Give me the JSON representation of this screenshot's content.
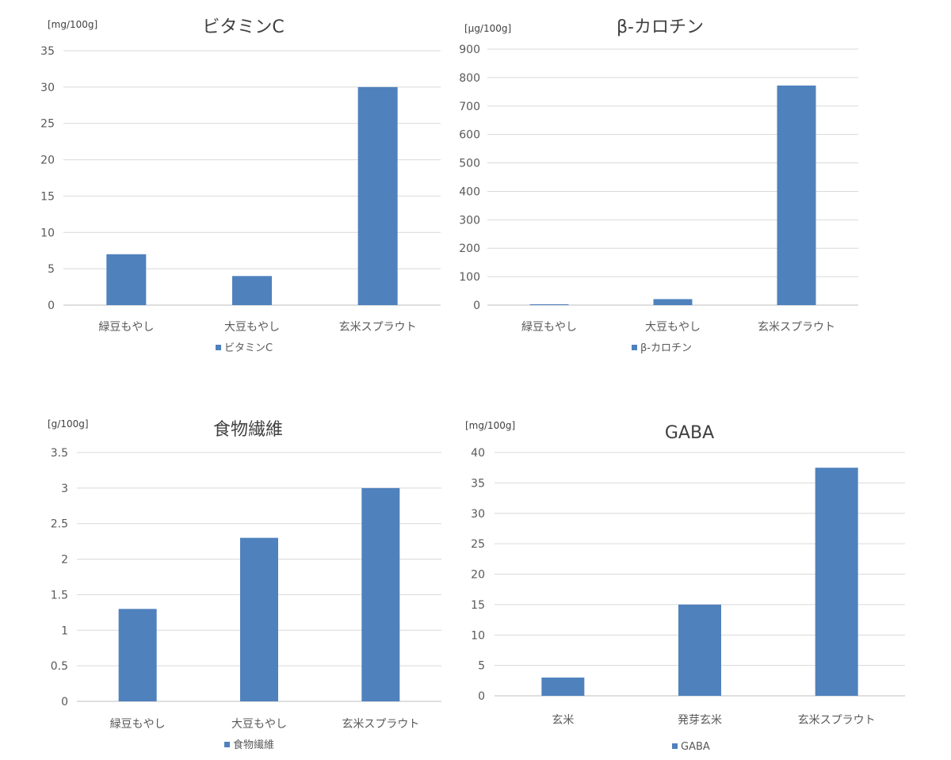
{
  "chart_data": [
    {
      "type": "bar",
      "title": "ビタミンC",
      "unit_label": "[mg/100g]",
      "categories": [
        "緑豆もやし",
        "大豆もやし",
        "玄米スプラウト"
      ],
      "series": [
        {
          "name": "ビタミンC",
          "values": [
            7,
            4,
            30
          ]
        }
      ],
      "yticks": [
        0,
        5,
        10,
        15,
        20,
        25,
        30,
        35
      ],
      "ylim": [
        0,
        35
      ],
      "legend": "bottom",
      "color": "#4f81bd"
    },
    {
      "type": "bar",
      "title": "β-カロチン",
      "unit_label": "[μg/100g]",
      "categories": [
        "緑豆もやし",
        "大豆もやし",
        "玄米スプラウト"
      ],
      "series": [
        {
          "name": "β-カロチン",
          "values": [
            3,
            21,
            772
          ]
        }
      ],
      "yticks": [
        0,
        100,
        200,
        300,
        400,
        500,
        600,
        700,
        800,
        900
      ],
      "ylim": [
        0,
        900
      ],
      "legend": "bottom",
      "color": "#4f81bd"
    },
    {
      "type": "bar",
      "title": "食物繊維",
      "unit_label": "[g/100g]",
      "categories": [
        "緑豆もやし",
        "大豆もやし",
        "玄米スプラウト"
      ],
      "series": [
        {
          "name": "食物繊維",
          "values": [
            1.3,
            2.3,
            3.0
          ]
        }
      ],
      "yticks": [
        "0",
        "0.5",
        "1",
        "1.5",
        "2",
        "2.5",
        "3",
        "3.5"
      ],
      "ylim": [
        0,
        3.5
      ],
      "legend": "bottom",
      "color": "#4f81bd"
    },
    {
      "type": "bar",
      "title": "GABA",
      "unit_label": "[mg/100g]",
      "categories": [
        "玄米",
        "発芽玄米",
        "玄米スプラウト"
      ],
      "series": [
        {
          "name": "GABA",
          "values": [
            3,
            15,
            37.5
          ]
        }
      ],
      "yticks": [
        0,
        5,
        10,
        15,
        20,
        25,
        30,
        35,
        40
      ],
      "ylim": [
        0,
        40
      ],
      "legend": "bottom",
      "color": "#4f81bd"
    }
  ]
}
